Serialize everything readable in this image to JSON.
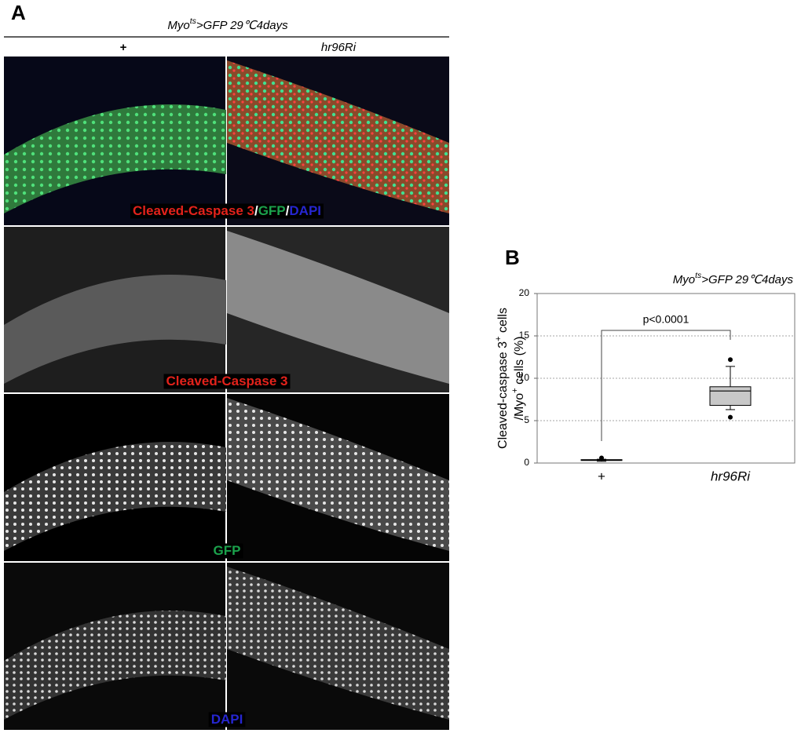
{
  "panel_a": {
    "label": "A",
    "title": [
      {
        "text": "Myo"
      },
      {
        "text": "ts",
        "sup": true
      },
      {
        "text": ">GFP 29℃4days"
      }
    ],
    "columns": [
      "+",
      "hr96Ri"
    ],
    "captions": [
      [
        {
          "text": "Cleaved-Caspase 3",
          "color": "#e3221b"
        },
        {
          "text": "/",
          "color": "#ffffff"
        },
        {
          "text": "GFP",
          "color": "#1ba24c"
        },
        {
          "text": "/",
          "color": "#ffffff"
        },
        {
          "text": "DAPI",
          "color": "#2626d0"
        }
      ],
      [
        {
          "text": "Cleaved-Caspase 3",
          "color": "#e3221b"
        }
      ],
      [
        {
          "text": "GFP",
          "color": "#1ba24c"
        }
      ],
      [
        {
          "text": "DAPI",
          "color": "#2626d0"
        }
      ]
    ]
  },
  "chart_data": {
    "type": "box",
    "label": "B",
    "title": [
      {
        "text": "Myo"
      },
      {
        "text": "ts",
        "sup": true
      },
      {
        "text": ">GFP 29℃4days"
      }
    ],
    "ylabel": [
      [
        {
          "text": "Cleaved-caspase 3"
        },
        {
          "text": "+",
          "sup": true
        },
        {
          "text": " cells"
        }
      ],
      [
        {
          "text": "/Myo"
        },
        {
          "text": "+",
          "sup": true
        },
        {
          "text": " cells (%)"
        }
      ]
    ],
    "annotation": "p<0.0001",
    "categories": [
      "+",
      "hr96Ri"
    ],
    "boxes": [
      {
        "whislo": 0.2,
        "q1": 0.3,
        "med": 0.35,
        "q3": 0.4,
        "whishi": 0.45,
        "fliers": [
          0.6
        ]
      },
      {
        "whislo": 6.3,
        "q1": 6.8,
        "med": 8.5,
        "q3": 9.0,
        "whishi": 11.4,
        "fliers": [
          12.2,
          5.4
        ]
      }
    ],
    "box_color": "#c8c8c8",
    "ylim": [
      0,
      20
    ],
    "yticks": [
      0,
      5,
      10,
      15,
      20
    ],
    "grid": true
  }
}
